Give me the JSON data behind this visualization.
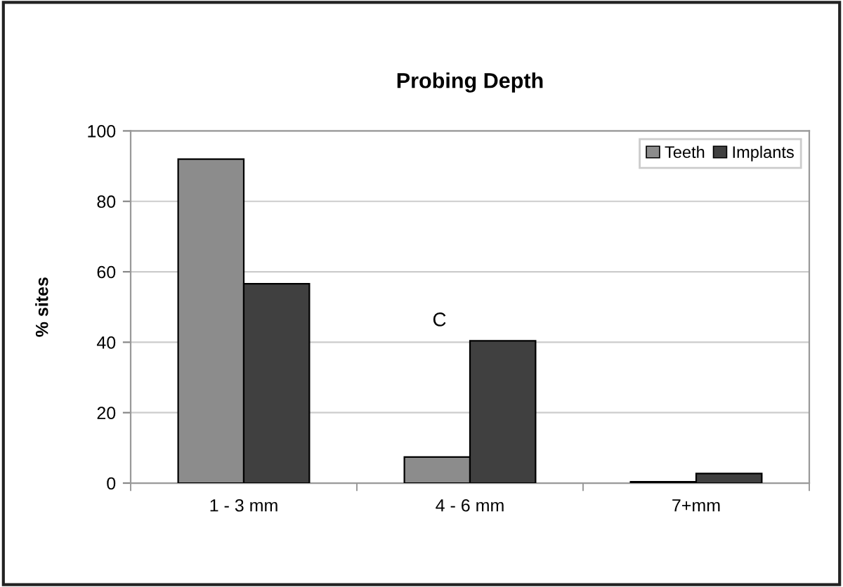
{
  "chart_data": {
    "type": "bar",
    "title": "Probing Depth",
    "ylabel": "% sites",
    "categories": [
      "1 - 3 mm",
      "4 - 6 mm",
      "7+mm"
    ],
    "series": [
      {
        "name": "Teeth",
        "color": "#8c8c8c",
        "values": [
          92,
          7.4,
          0.4
        ]
      },
      {
        "name": "Implants",
        "color": "#404040",
        "values": [
          56.6,
          40.4,
          2.7
        ]
      }
    ],
    "annotations": [
      "C"
    ],
    "ylim": [
      0,
      100
    ],
    "yticks": [
      0,
      20,
      40,
      60,
      80,
      100
    ],
    "grid": "y",
    "legend": "top right"
  }
}
